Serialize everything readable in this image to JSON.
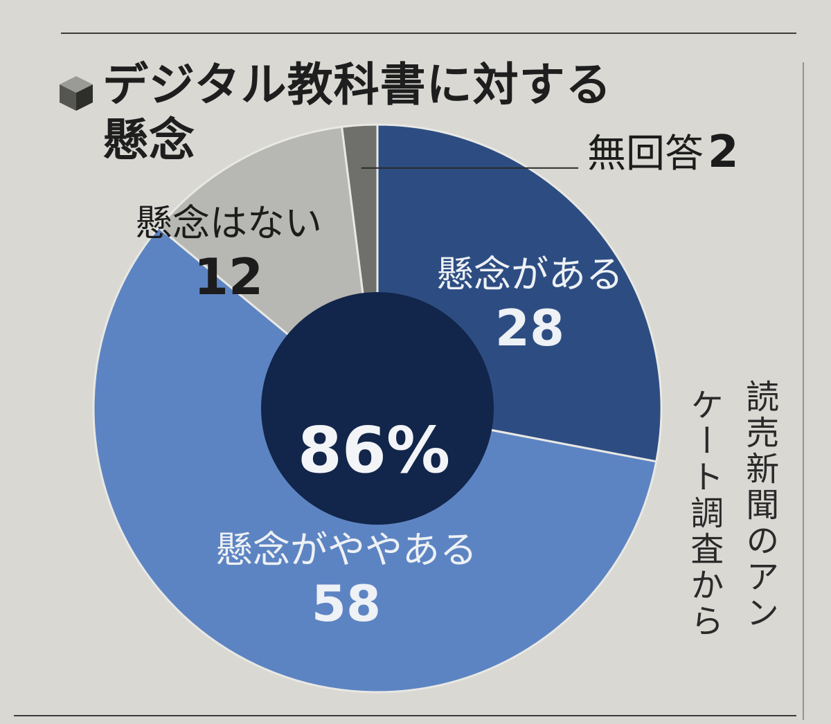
{
  "chart_data": {
    "type": "pie",
    "title": "デジタル教科書に対する懸念",
    "title_lines": [
      "デジタル教科書に対する",
      "懸念"
    ],
    "categories": [
      "懸念がある",
      "懸念がややある",
      "懸念はない",
      "無回答"
    ],
    "values": [
      28,
      58,
      12,
      2
    ],
    "colors": [
      "#2d4d82",
      "#5d84c2",
      "#b7b7b3",
      "#6f6f6c"
    ],
    "inner_summary": {
      "label": "86%",
      "value": 86,
      "covers": [
        "懸念がある",
        "懸念がややある"
      ],
      "color": "#12254a"
    },
    "source_note_lines": [
      "読売新聞のアン",
      "ケート調査から"
    ]
  }
}
